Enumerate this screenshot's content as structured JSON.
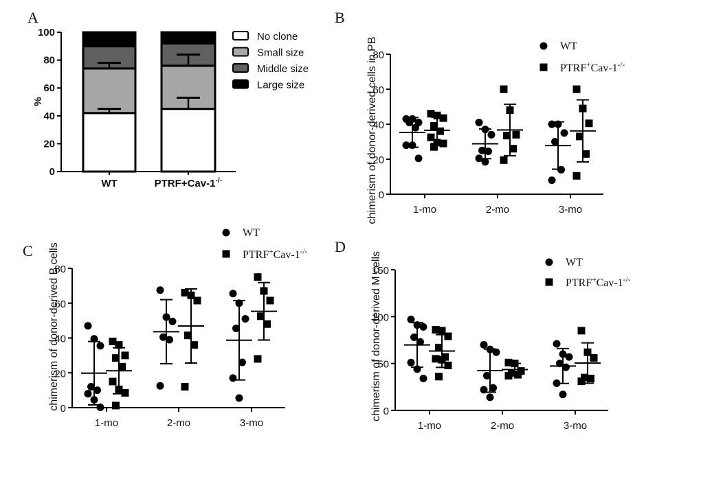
{
  "figure": {
    "panels": [
      "A",
      "B",
      "C",
      "D"
    ]
  },
  "chart_data": [
    {
      "panel": "A",
      "type": "bar",
      "stacked": true,
      "title": "",
      "xlabel": "",
      "ylabel": "%",
      "ylim": [
        0,
        100
      ],
      "yticks": [
        0,
        20,
        40,
        60,
        80,
        100
      ],
      "categories": [
        "WT",
        "PTRF+Cav-1"
      ],
      "category_superscripts": [
        "",
        "-/-"
      ],
      "series": [
        {
          "name": "No clone",
          "color": "#ffffff",
          "values": [
            42,
            45
          ],
          "error_upper": [
            3,
            8
          ]
        },
        {
          "name": "Small size",
          "color": "#a6a6a6",
          "values": [
            32,
            31
          ],
          "error_upper": [
            4,
            8
          ]
        },
        {
          "name": "Middle size",
          "color": "#606060",
          "values": [
            16,
            16
          ],
          "error_upper": [
            0,
            0
          ]
        },
        {
          "name": "Large size",
          "color": "#000000",
          "values": [
            10,
            8
          ],
          "error_upper": [
            0,
            0
          ]
        }
      ],
      "legend_position": "top-right"
    },
    {
      "panel": "B",
      "type": "scatter",
      "title": "",
      "xlabel": "",
      "ylabel": "chimerism of donor-derived cells in PB",
      "ylim": [
        0,
        80
      ],
      "yticks": [
        0,
        20,
        40,
        60,
        80
      ],
      "categories": [
        "1-mo",
        "2-mo",
        "3-mo"
      ],
      "series": [
        {
          "name": "WT",
          "marker": "circle",
          "points": [
            [
              43,
              43,
              41,
              41,
              38,
              28,
              28,
              20.5
            ],
            [
              41,
              37,
              34,
              25,
              24.5,
              20.5,
              18.5
            ],
            [
              40,
              40,
              35,
              30,
              14,
              8
            ]
          ],
          "mean": [
            35.3,
            28.8,
            27.8
          ],
          "sd": [
            8.5,
            8.5,
            13.5
          ]
        },
        {
          "name": "PTRF",
          "marker": "square",
          "points": [
            [
              46,
              45,
              43.5,
              39,
              36,
              32.5,
              29.5,
              29,
              27
            ],
            [
              60,
              48,
              34,
              33.5,
              26,
              19.5
            ],
            [
              60,
              49,
              40.5,
              33,
              23,
              10.5
            ]
          ],
          "mean": [
            36.5,
            36.7,
            36.2
          ],
          "sd": [
            7.5,
            14.7,
            17.7
          ]
        }
      ],
      "legend_labels": [
        "WT",
        "PTRF"
      ],
      "legend_superscripts": [
        "",
        "+"
      ],
      "legend_suffix": "Cav-1",
      "legend_suffix_superscript": "-/-",
      "legend_position": "top-right"
    },
    {
      "panel": "C",
      "type": "scatter",
      "title": "",
      "xlabel": "",
      "ylabel": "chimerism of donor-derived B cells",
      "ylim": [
        0,
        80
      ],
      "yticks": [
        0,
        20,
        40,
        60,
        80
      ],
      "categories": [
        "1-mo",
        "2-mo",
        "3-mo"
      ],
      "series": [
        {
          "name": "WT",
          "marker": "circle",
          "points": [
            [
              47,
              39.5,
              35.5,
              12,
              10,
              8,
              4.5,
              0.2
            ],
            [
              67.5,
              52,
              49.5,
              40.5,
              39,
              12.5
            ],
            [
              65.5,
              60,
              51,
              45.5,
              26,
              17,
              5.5
            ]
          ],
          "mean": [
            19.8,
            43.6,
            38.7
          ],
          "sd": [
            18.2,
            18.4,
            22.8
          ]
        },
        {
          "name": "PTRF",
          "marker": "square",
          "points": [
            [
              38,
              36,
              30,
              28.5,
              23.5,
              15,
              10.5,
              8.5,
              1.2
            ],
            [
              66,
              64.5,
              61.5,
              41.5,
              36,
              12
            ],
            [
              75,
              67,
              61.5,
              52.5,
              48,
              28
            ]
          ],
          "mean": [
            21.2,
            46.9,
            55.3
          ],
          "sd": [
            13.2,
            21.3,
            16.5
          ]
        }
      ],
      "legend_labels": [
        "WT",
        "PTRF"
      ],
      "legend_superscripts": [
        "",
        "+"
      ],
      "legend_suffix": "Cav-1",
      "legend_suffix_superscript": "-/-",
      "legend_position": "top-right"
    },
    {
      "panel": "D",
      "type": "scatter",
      "title": "",
      "xlabel": "",
      "ylabel": "chimerism of donor-derived M cells",
      "ylim": [
        0,
        150
      ],
      "yticks": [
        0,
        50,
        100,
        150
      ],
      "categories": [
        "1-mo",
        "2-mo",
        "3-mo"
      ],
      "series": [
        {
          "name": "WT",
          "marker": "circle",
          "points": [
            [
              97,
              91,
              89,
              78,
              73,
              51,
              44,
              34
            ],
            [
              70,
              65,
              62,
              37,
              24,
              22,
              14
            ],
            [
              71,
              60,
              57,
              50,
              46,
              29,
              17
            ]
          ],
          "mean": [
            69.8,
            42.4,
            47.3
          ],
          "sd": [
            23.8,
            23,
            18.6
          ]
        },
        {
          "name": "PTRF",
          "marker": "square",
          "points": [
            [
              86,
              85,
              79,
              67,
              57,
              55,
              54,
              48,
              36
            ],
            [
              51,
              50,
              42,
              40,
              38,
              37
            ],
            [
              85,
              62,
              56,
              35,
              34,
              31
            ]
          ],
          "mean": [
            63.3,
            43.5,
            50.5
          ],
          "sd": [
            17.5,
            6.5,
            21.5
          ]
        }
      ],
      "legend_labels": [
        "WT",
        "PTRF"
      ],
      "legend_superscripts": [
        "",
        "+"
      ],
      "legend_suffix": "Cav-1",
      "legend_suffix_superscript": "-/-",
      "legend_position": "top-right"
    }
  ]
}
